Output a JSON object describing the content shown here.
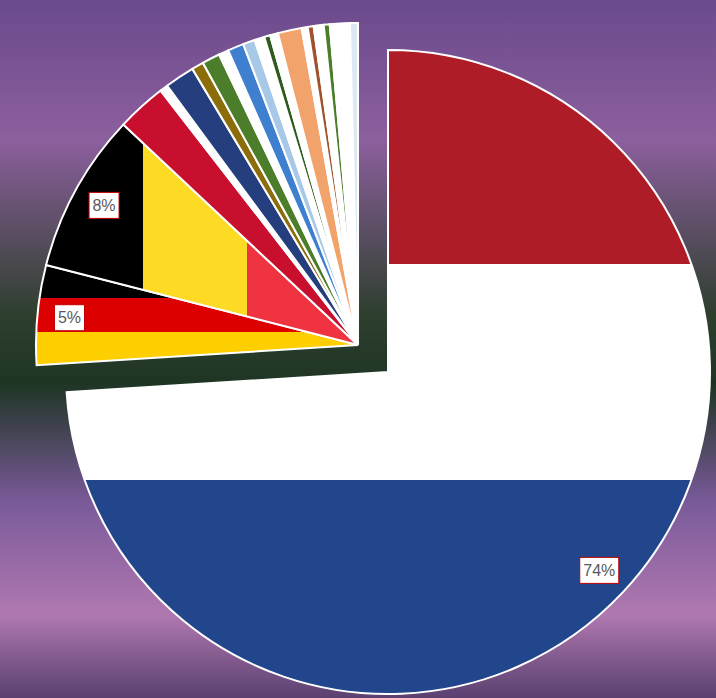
{
  "chart_data": {
    "type": "pie",
    "values": [
      74,
      5,
      8,
      2.5,
      0.4,
      1.5,
      0.6,
      0.9,
      0.5,
      0.8,
      0.6,
      0.5,
      0.3,
      0.4,
      1.2,
      0.3,
      0.3,
      0.5,
      0.3,
      1.0,
      0.4
    ],
    "colors": [
      "#ae1c28",
      "#000000",
      "#000000",
      "#c8102e",
      "#ffffff",
      "#253f7e",
      "#8b6d0b",
      "#4b7d2a",
      "#ffffff",
      "#3f7fd0",
      "#a8c8e8",
      "#ffffff",
      "#2f5b1e",
      "#ffffff",
      "#f2a36b",
      "#ffffff",
      "#a0522d",
      "#ffffff",
      "#4b7d2a",
      "#ffffff",
      "#dde8f4"
    ],
    "value_labels": [
      "74%",
      "5%",
      "8%",
      null,
      null,
      null,
      null,
      null,
      null,
      null,
      null,
      null,
      null,
      null,
      null,
      null,
      null,
      null,
      null,
      null,
      null
    ],
    "data_labels": true
  }
}
